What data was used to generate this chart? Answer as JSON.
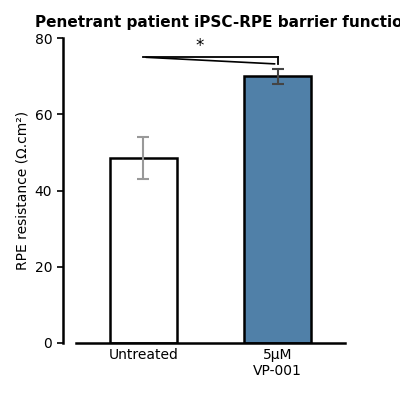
{
  "title": "Penetrant patient iPSC-RPE barrier function",
  "categories": [
    "Untreated",
    "5μM\nVP-001"
  ],
  "values": [
    48.5,
    70.0
  ],
  "errors": [
    5.5,
    2.0
  ],
  "bar_colors": [
    "#ffffff",
    "#5080a8"
  ],
  "bar_edgecolors": [
    "#000000",
    "#000000"
  ],
  "ylabel": "RPE resistance (Ω.cm²)",
  "ylim": [
    0,
    80
  ],
  "yticks": [
    0,
    20,
    40,
    60,
    80
  ],
  "significance_y": 75.0,
  "sig_bar_x1": 0,
  "sig_bar_x2": 1,
  "sig_text": "*",
  "error_color_untreated": "#999999",
  "error_color_treated": "#444444",
  "bar_width": 0.5,
  "figsize": [
    4.0,
    3.93
  ],
  "dpi": 100,
  "xlim": [
    -0.6,
    1.8
  ],
  "xlabel_fontsize": 10,
  "ylabel_fontsize": 10,
  "title_fontsize": 11
}
